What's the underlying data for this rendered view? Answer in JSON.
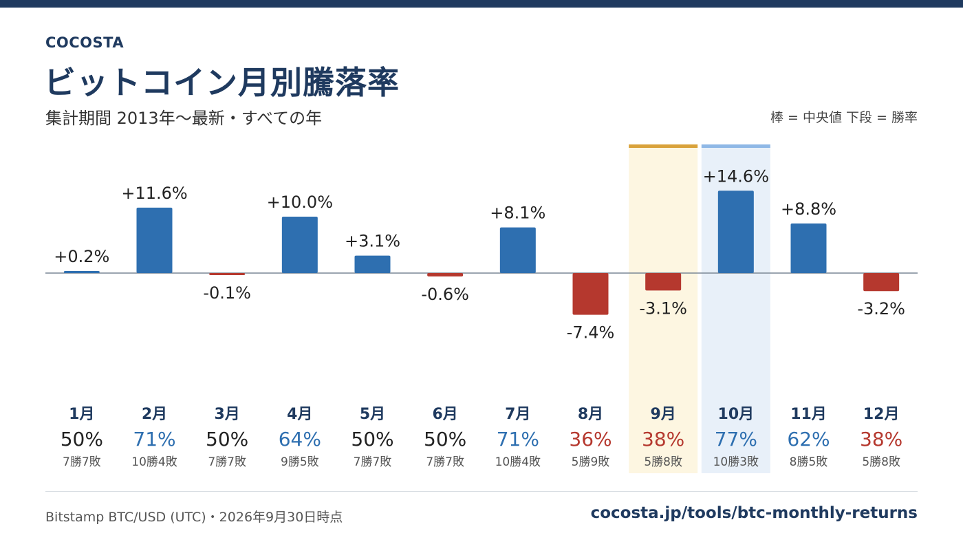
{
  "brand": "COCOSTA",
  "title": "ビットコイン月別騰落率",
  "subtitle": "集計期間 2013年〜最新・すべての年",
  "legend_note": "棒 = 中央値  下段 = 勝率",
  "source": "Bitstamp BTC/USD (UTC)・2026年9月30日時点",
  "url": "cocosta.jp/tools/btc-monthly-returns",
  "colors": {
    "positive": "#2e6fb0",
    "negative": "#b5382e",
    "neutral_text": "#222222",
    "month_label": "#1f3a5f",
    "highlight_current_bg": "#fdf6e1",
    "highlight_current_bar": "#d9a23a",
    "highlight_best_bg": "#e8f0f9",
    "highlight_best_bar": "#8fb8e6",
    "baseline": "#7a8796"
  },
  "chart_data": {
    "type": "bar",
    "categories": [
      "1月",
      "2月",
      "3月",
      "4月",
      "5月",
      "6月",
      "7月",
      "8月",
      "9月",
      "10月",
      "11月",
      "12月"
    ],
    "values": [
      0.2,
      11.6,
      -0.1,
      10.0,
      3.1,
      -0.6,
      8.1,
      -7.4,
      -3.1,
      14.6,
      8.8,
      -3.2
    ],
    "value_labels": [
      "+0.2%",
      "+11.6%",
      "-0.1%",
      "+10.0%",
      "+3.1%",
      "-0.6%",
      "+8.1%",
      "-7.4%",
      "-3.1%",
      "+14.6%",
      "+8.8%",
      "-3.2%"
    ],
    "win_rates": [
      50,
      71,
      50,
      64,
      50,
      50,
      71,
      36,
      38,
      77,
      62,
      38
    ],
    "win_rate_labels": [
      "50%",
      "71%",
      "50%",
      "64%",
      "50%",
      "50%",
      "71%",
      "36%",
      "38%",
      "77%",
      "62%",
      "38%"
    ],
    "records": [
      "7勝7敗",
      "10勝4敗",
      "7勝7敗",
      "9勝5敗",
      "7勝7敗",
      "7勝7敗",
      "10勝4敗",
      "5勝9敗",
      "5勝8敗",
      "10勝3敗",
      "8勝5敗",
      "5勝8敗"
    ],
    "highlighted": {
      "current_month": "9月",
      "best_month": "10月"
    },
    "ylabel": "",
    "xlabel": "",
    "grid": false
  }
}
